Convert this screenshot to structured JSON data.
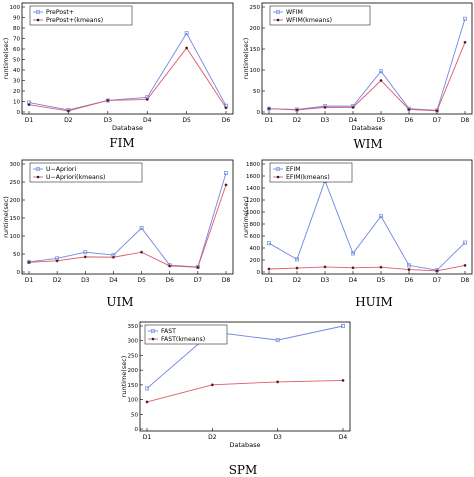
{
  "chart_data": [
    {
      "type": "line",
      "caption": "FIM",
      "xlabel": "Database",
      "ylabel": "runtime(sec)",
      "categories": [
        "D1",
        "D2",
        "D3",
        "D4",
        "D5",
        "D6"
      ],
      "ylim": [
        0,
        100
      ],
      "yticks": [
        0,
        10,
        20,
        30,
        40,
        50,
        60,
        70,
        80,
        90,
        100
      ],
      "legend_position": "top-left",
      "series": [
        {
          "name": "PrePost+",
          "color": "#6f88e0",
          "marker": "square",
          "values": [
            9,
            2,
            11,
            14,
            75,
            6
          ]
        },
        {
          "name": "PrePost+(kmeans)",
          "color": "#e05a6a",
          "marker": "dot",
          "values": [
            7,
            1,
            11,
            12,
            61,
            4
          ]
        }
      ]
    },
    {
      "type": "line",
      "caption": "WIM",
      "xlabel": "Database",
      "ylabel": "runtime(sec)",
      "categories": [
        "D1",
        "D2",
        "D3",
        "D4",
        "D5",
        "D6",
        "D7",
        "D8"
      ],
      "ylim": [
        0,
        250
      ],
      "yticks": [
        0,
        50,
        100,
        150,
        200,
        250
      ],
      "legend_position": "top-left",
      "series": [
        {
          "name": "WFIM",
          "color": "#6f88e0",
          "marker": "square",
          "values": [
            8,
            6,
            14,
            14,
            97,
            8,
            4,
            222
          ]
        },
        {
          "name": "WFIM(kmeans)",
          "color": "#e05a6a",
          "marker": "dot",
          "values": [
            8,
            5,
            11,
            11,
            75,
            6,
            3,
            166
          ]
        }
      ]
    },
    {
      "type": "line",
      "caption": "UIM",
      "xlabel": "",
      "ylabel": "runtime(sec)",
      "categories": [
        "D1",
        "D2",
        "D3",
        "D4",
        "D5",
        "D6",
        "D7",
        "D8"
      ],
      "ylim": [
        0,
        300
      ],
      "yticks": [
        0,
        50,
        100,
        150,
        200,
        250,
        300
      ],
      "legend_position": "top-left",
      "series": [
        {
          "name": "U−Apriori",
          "color": "#6f88e0",
          "marker": "square",
          "values": [
            28,
            38,
            55,
            47,
            122,
            19,
            14,
            275
          ]
        },
        {
          "name": "U−Apriori(kmeans)",
          "color": "#e05a6a",
          "marker": "dot",
          "values": [
            27,
            31,
            42,
            41,
            55,
            17,
            13,
            242
          ]
        }
      ]
    },
    {
      "type": "line",
      "caption": "HUIM",
      "xlabel": "",
      "ylabel": "runtime(sec)",
      "categories": [
        "D1",
        "D2",
        "D3",
        "D4",
        "D5",
        "D6",
        "D7",
        "D8"
      ],
      "ylim": [
        0,
        1800
      ],
      "yticks": [
        0,
        200,
        400,
        600,
        800,
        1000,
        1200,
        1400,
        1600,
        1800
      ],
      "legend_position": "top-left",
      "series": [
        {
          "name": "EFIM",
          "color": "#6f88e0",
          "marker": "square",
          "values": [
            480,
            210,
            1520,
            310,
            930,
            110,
            30,
            490
          ]
        },
        {
          "name": "EFIM(kmeans)",
          "color": "#e05a6a",
          "marker": "dot",
          "values": [
            50,
            65,
            85,
            70,
            80,
            40,
            20,
            110
          ]
        }
      ]
    },
    {
      "type": "line",
      "caption": "SPM",
      "xlabel": "Database",
      "ylabel": "runtime(sec)",
      "categories": [
        "D1",
        "D2",
        "D3",
        "D4"
      ],
      "ylim": [
        0,
        350
      ],
      "yticks": [
        0,
        50,
        100,
        150,
        200,
        250,
        300,
        350
      ],
      "legend_position": "top-left",
      "series": [
        {
          "name": "FAST",
          "color": "#6f88e0",
          "marker": "square",
          "values": [
            138,
            330,
            302,
            350
          ]
        },
        {
          "name": "FAST(kmeans)",
          "color": "#e05a6a",
          "marker": "dot",
          "values": [
            92,
            150,
            160,
            165
          ]
        }
      ]
    }
  ]
}
